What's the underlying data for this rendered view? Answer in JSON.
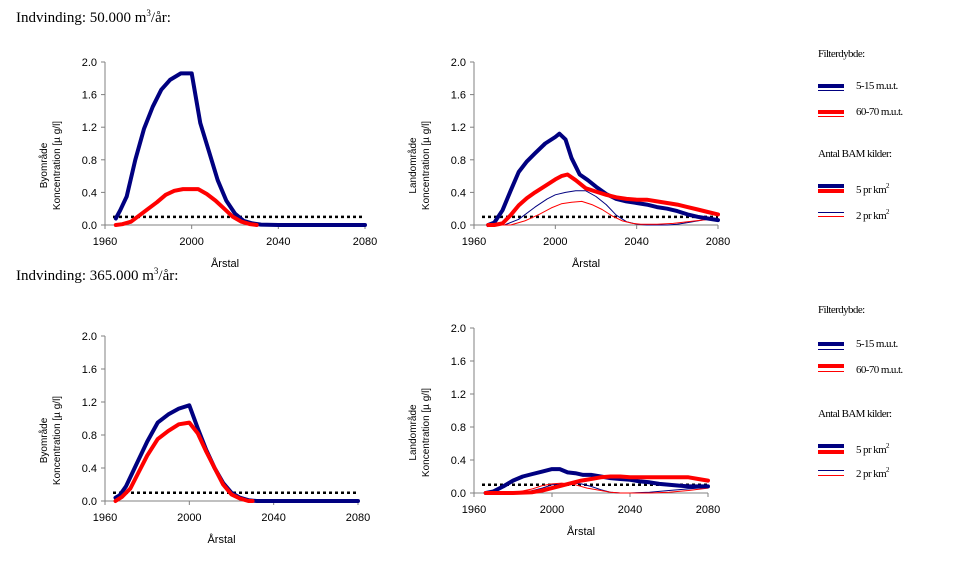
{
  "sections": [
    {
      "title_prefix": "Indvinding: 50.000 m",
      "title_sup": "3",
      "title_suffix": "/år:"
    },
    {
      "title_prefix": "Indvinding: 365.000 m",
      "title_sup": "3",
      "title_suffix": "/år:"
    }
  ],
  "colors": {
    "blue": "#000080",
    "red": "#ff0000",
    "threshold": "#000000",
    "axis": "#808080"
  },
  "legends": [
    {
      "filter_heading": "Filterdybde:",
      "filter_items": [
        {
          "label": "5-15 m.u.t.",
          "color": "#000080"
        },
        {
          "label": "60-70 m.u.t.",
          "color": "#ff0000"
        }
      ],
      "source_heading": "Antal BAM kilder:",
      "source_items": [
        {
          "label": "5 pr km",
          "sup": "2",
          "style": "thick"
        },
        {
          "label": "2 pr km",
          "sup": "2",
          "style": "thin"
        }
      ]
    },
    {
      "filter_heading": "Filterdybde:",
      "filter_items": [
        {
          "label": "5-15 m.u.t.",
          "color": "#000080"
        },
        {
          "label": "60-70 m.u.t.",
          "color": "#ff0000"
        }
      ],
      "source_heading": "Antal BAM kilder:",
      "source_items": [
        {
          "label": "5 pr km",
          "sup": "2",
          "style": "thick"
        },
        {
          "label": "2 pr km",
          "sup": "2",
          "style": "thin"
        }
      ]
    }
  ],
  "chart_data": [
    {
      "type": "line",
      "title": "",
      "section": "Indvinding: 50.000 m3/år",
      "xlabel": "Årstal",
      "ylabel_line1": "Byområde",
      "ylabel_line2": "Koncentration [µ g/l]",
      "xlim": [
        1960,
        2080
      ],
      "ylim": [
        0,
        2.0
      ],
      "xticks": [
        "1960",
        "2000",
        "2040",
        "2080"
      ],
      "yticks": [
        "0.0",
        "0.4",
        "0.8",
        "1.2",
        "1.6",
        "2.0"
      ],
      "threshold": 0.1,
      "series": [
        {
          "name": "5-15 m.u.t., 5 pr km2",
          "color": "blue",
          "width": "thick",
          "x": [
            1965,
            1967,
            1970,
            1974,
            1978,
            1982,
            1986,
            1990,
            1995,
            2000,
            2004,
            2008,
            2012,
            2016,
            2020,
            2024,
            2028,
            2032,
            2040,
            2080
          ],
          "y": [
            0.08,
            0.18,
            0.35,
            0.8,
            1.18,
            1.45,
            1.66,
            1.78,
            1.86,
            1.86,
            1.25,
            0.9,
            0.55,
            0.3,
            0.14,
            0.05,
            0.02,
            0.005,
            0.0,
            0.0
          ]
        },
        {
          "name": "60-70 m.u.t., 5 pr km2",
          "color": "red",
          "width": "thick",
          "x": [
            1965,
            1968,
            1972,
            1976,
            1980,
            1984,
            1988,
            1992,
            1996,
            2000,
            2003,
            2007,
            2011,
            2015,
            2019,
            2023,
            2027,
            2030
          ],
          "y": [
            0.0,
            0.01,
            0.04,
            0.12,
            0.2,
            0.28,
            0.37,
            0.42,
            0.44,
            0.44,
            0.44,
            0.38,
            0.3,
            0.2,
            0.1,
            0.04,
            0.01,
            0.0
          ]
        }
      ]
    },
    {
      "type": "line",
      "title": "",
      "section": "Indvinding: 50.000 m3/år",
      "xlabel": "Årstal",
      "ylabel_line1": "Landområde",
      "ylabel_line2": "Koncentration [µ g/l]",
      "xlim": [
        1960,
        2080
      ],
      "ylim": [
        0,
        2.0
      ],
      "xticks": [
        "1960",
        "2000",
        "2040",
        "2080"
      ],
      "yticks": [
        "0.0",
        "0.4",
        "0.8",
        "1.2",
        "1.6",
        "2.0"
      ],
      "threshold": 0.1,
      "series": [
        {
          "name": "5-15 m.u.t., 5 pr km2",
          "color": "blue",
          "width": "thick",
          "x": [
            1967,
            1970,
            1974,
            1978,
            1982,
            1986,
            1990,
            1995,
            2000,
            2002,
            2005,
            2008,
            2012,
            2016,
            2020,
            2025,
            2030,
            2035,
            2040,
            2045,
            2050,
            2055,
            2060,
            2065,
            2070,
            2075,
            2080
          ],
          "y": [
            0.0,
            0.03,
            0.18,
            0.42,
            0.65,
            0.78,
            0.88,
            1.0,
            1.08,
            1.12,
            1.05,
            0.82,
            0.62,
            0.55,
            0.47,
            0.38,
            0.32,
            0.29,
            0.27,
            0.25,
            0.22,
            0.2,
            0.17,
            0.13,
            0.1,
            0.08,
            0.06
          ]
        },
        {
          "name": "60-70 m.u.t., 5 pr km2",
          "color": "red",
          "width": "thick",
          "x": [
            1967,
            1970,
            1974,
            1978,
            1982,
            1986,
            1990,
            1995,
            2000,
            2003,
            2006,
            2010,
            2015,
            2020,
            2025,
            2030,
            2035,
            2040,
            2045,
            2050,
            2055,
            2060,
            2065,
            2070,
            2075,
            2080
          ],
          "y": [
            0.0,
            0.0,
            0.02,
            0.12,
            0.24,
            0.33,
            0.4,
            0.48,
            0.56,
            0.6,
            0.62,
            0.55,
            0.45,
            0.41,
            0.37,
            0.34,
            0.32,
            0.31,
            0.31,
            0.29,
            0.27,
            0.25,
            0.22,
            0.19,
            0.16,
            0.13
          ]
        },
        {
          "name": "5-15 m.u.t., 2 pr km2",
          "color": "blue",
          "width": "thin",
          "x": [
            1967,
            1975,
            1982,
            1990,
            1996,
            2000,
            2005,
            2010,
            2015,
            2020,
            2025,
            2030,
            2035,
            2040,
            2045,
            2050,
            2055,
            2060,
            2065,
            2070,
            2075,
            2080
          ],
          "y": [
            0.0,
            0.0,
            0.07,
            0.22,
            0.32,
            0.37,
            0.4,
            0.42,
            0.42,
            0.35,
            0.25,
            0.12,
            0.04,
            0.01,
            0.0,
            0.0,
            0.0,
            0.01,
            0.03,
            0.05,
            0.07,
            0.08
          ]
        },
        {
          "name": "60-70 m.u.t., 2 pr km2",
          "color": "red",
          "width": "thin",
          "x": [
            1967,
            1978,
            1985,
            1992,
            1998,
            2003,
            2008,
            2013,
            2018,
            2023,
            2028,
            2033,
            2038,
            2042,
            2050,
            2058,
            2065,
            2072,
            2080
          ],
          "y": [
            0.0,
            0.0,
            0.05,
            0.13,
            0.21,
            0.26,
            0.28,
            0.29,
            0.25,
            0.19,
            0.11,
            0.05,
            0.02,
            0.01,
            0.01,
            0.02,
            0.04,
            0.06,
            0.08
          ]
        }
      ]
    },
    {
      "type": "line",
      "title": "",
      "section": "Indvinding: 365.000 m3/år",
      "xlabel": "Årstal",
      "ylabel_line1": "Byområde",
      "ylabel_line2": "Koncentration [µ g/l]",
      "xlim": [
        1960,
        2080
      ],
      "ylim": [
        0,
        2.0
      ],
      "xticks": [
        "1960",
        "2000",
        "2040",
        "2080"
      ],
      "yticks": [
        "0.0",
        "0.4",
        "0.8",
        "1.2",
        "1.6",
        "2.0"
      ],
      "threshold": 0.1,
      "series": [
        {
          "name": "5-15 m.u.t., 5 pr km2",
          "color": "blue",
          "width": "thick",
          "x": [
            1965,
            1967,
            1970,
            1975,
            1980,
            1985,
            1990,
            1995,
            2000,
            2004,
            2008,
            2012,
            2016,
            2020,
            2024,
            2028,
            2032,
            2040,
            2080
          ],
          "y": [
            0.04,
            0.07,
            0.18,
            0.45,
            0.72,
            0.95,
            1.05,
            1.12,
            1.16,
            0.88,
            0.62,
            0.4,
            0.22,
            0.1,
            0.04,
            0.01,
            0.0,
            0.0,
            0.0
          ]
        },
        {
          "name": "60-70 m.u.t., 5 pr km2",
          "color": "red",
          "width": "thick",
          "x": [
            1965,
            1968,
            1972,
            1976,
            1980,
            1985,
            1990,
            1995,
            2000,
            2004,
            2008,
            2012,
            2016,
            2020,
            2024,
            2028,
            2030
          ],
          "y": [
            0.0,
            0.05,
            0.15,
            0.35,
            0.55,
            0.75,
            0.85,
            0.93,
            0.95,
            0.82,
            0.6,
            0.4,
            0.2,
            0.08,
            0.03,
            0.0,
            0.0
          ]
        }
      ]
    },
    {
      "type": "line",
      "title": "",
      "section": "Indvinding: 365.000 m3/år",
      "xlabel": "Årstal",
      "ylabel_line1": "Landområde",
      "ylabel_line2": "Koncentration [µ g/l]",
      "xlim": [
        1960,
        2080
      ],
      "ylim": [
        0,
        2.0
      ],
      "xticks": [
        "1960",
        "2000",
        "2040",
        "2080"
      ],
      "yticks": [
        "0.0",
        "0.4",
        "0.8",
        "1.2",
        "1.6",
        "2.0"
      ],
      "threshold": 0.1,
      "series": [
        {
          "name": "5-15 m.u.t., 5 pr km2",
          "color": "blue",
          "width": "thick",
          "x": [
            1966,
            1970,
            1975,
            1980,
            1985,
            1990,
            1995,
            2000,
            2004,
            2008,
            2012,
            2016,
            2020,
            2025,
            2030,
            2035,
            2040,
            2045,
            2050,
            2055,
            2060,
            2065,
            2070,
            2075,
            2080
          ],
          "y": [
            0.0,
            0.02,
            0.08,
            0.15,
            0.2,
            0.23,
            0.26,
            0.29,
            0.29,
            0.25,
            0.24,
            0.22,
            0.22,
            0.2,
            0.18,
            0.17,
            0.16,
            0.14,
            0.13,
            0.11,
            0.1,
            0.09,
            0.08,
            0.08,
            0.08
          ]
        },
        {
          "name": "60-70 m.u.t., 5 pr km2",
          "color": "red",
          "width": "thick",
          "x": [
            1966,
            1980,
            1990,
            1995,
            2000,
            2005,
            2010,
            2015,
            2020,
            2025,
            2030,
            2035,
            2040,
            2050,
            2060,
            2070,
            2075,
            2080
          ],
          "y": [
            0.0,
            0.0,
            0.01,
            0.03,
            0.06,
            0.09,
            0.12,
            0.15,
            0.17,
            0.19,
            0.2,
            0.2,
            0.19,
            0.19,
            0.19,
            0.19,
            0.17,
            0.15
          ]
        },
        {
          "name": "5-15 m.u.t., 2 pr km2",
          "color": "blue",
          "width": "thin",
          "x": [
            1966,
            1985,
            1995,
            2000,
            2010,
            2015,
            2020,
            2025,
            2030,
            2035,
            2040,
            2050,
            2060,
            2070,
            2080
          ],
          "y": [
            0.0,
            0.0,
            0.06,
            0.1,
            0.12,
            0.11,
            0.08,
            0.04,
            0.01,
            0.0,
            0.0,
            0.01,
            0.03,
            0.05,
            0.07
          ]
        },
        {
          "name": "60-70 m.u.t., 2 pr km2",
          "color": "red",
          "width": "thin",
          "x": [
            1966,
            1980,
            1990,
            1995,
            2000,
            2005,
            2012,
            2018,
            2025,
            2030,
            2035,
            2040,
            2050,
            2060,
            2070,
            2080
          ],
          "y": [
            0.0,
            0.0,
            0.05,
            0.09,
            0.11,
            0.12,
            0.1,
            0.06,
            0.03,
            0.01,
            0.0,
            0.0,
            0.0,
            0.01,
            0.03,
            0.06
          ]
        }
      ]
    }
  ]
}
